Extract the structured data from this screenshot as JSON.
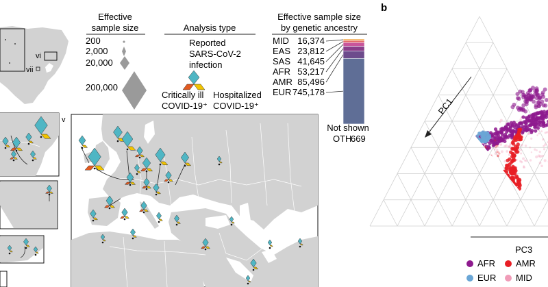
{
  "panel_letter": "b",
  "legends": {
    "effective_sample_size": {
      "title_line1": "Effective",
      "title_line2": "sample size",
      "levels": [
        "200",
        "2,000",
        "20,000",
        "200,000"
      ]
    },
    "analysis_type": {
      "title": "Analysis type",
      "reported": [
        "Reported",
        "SARS-CoV-2",
        "infection"
      ],
      "critically_ill": [
        "Critically ill",
        "COVID-19⁺"
      ],
      "hospitalized": [
        "Hospitalized",
        "COVID-19⁺"
      ],
      "colors": {
        "reported": "#4fb6c4",
        "critically_ill": "#e35a1f",
        "hospitalized": "#f2c400"
      }
    }
  },
  "map": {
    "inset_labels": [
      "vi",
      "vii",
      "v"
    ],
    "land_color": "#d2d2d2",
    "ocean_color": "#ffffff"
  },
  "chart_data": [
    {
      "type": "bar",
      "title": "Effective sample size by genetic ancestry",
      "title_line1": "Effective sample size",
      "title_line2": "by genetic ancestry",
      "stacked": true,
      "categories": [
        "MID",
        "EAS",
        "SAS",
        "AFR",
        "AMR",
        "EUR"
      ],
      "values": [
        16374,
        23812,
        41645,
        53217,
        85496,
        745178
      ],
      "value_labels": [
        "16,374",
        "23,812",
        "41,645",
        "53,217",
        "85,496",
        "745,178"
      ],
      "colors": {
        "MID": "#f0a13a",
        "EAS": "#e46a6a",
        "SAS": "#c9559b",
        "AFR": "#8a3d8a",
        "AMR": "#6d4b8c",
        "EUR": "#5f6e96"
      },
      "not_shown": {
        "caption": "Not shown",
        "category": "OTH",
        "value": 669,
        "value_label": "669"
      }
    },
    {
      "type": "scatter",
      "projection": "ternary",
      "xlabel": "PC3",
      "ylabel": "PC1",
      "legend": [
        {
          "name": "AFR",
          "color": "#8e1a8e"
        },
        {
          "name": "AMR",
          "color": "#e81e25"
        },
        {
          "name": "EUR",
          "color": "#6aa6d6"
        },
        {
          "name": "MID",
          "color": "#f09cb8"
        }
      ],
      "other_cluster_colors": {
        "orange": "#f7931e",
        "green": "#2e9b3a"
      },
      "grid": true
    }
  ]
}
